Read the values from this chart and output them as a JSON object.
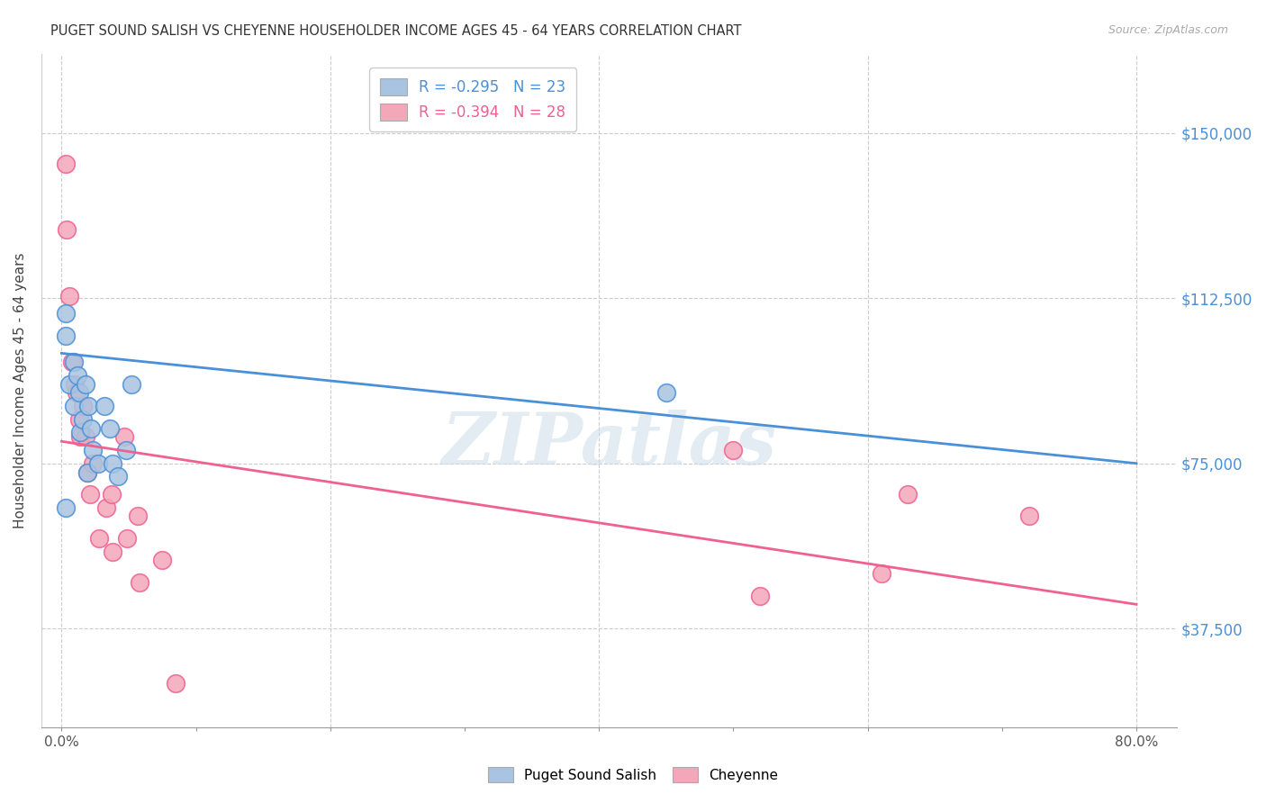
{
  "title": "PUGET SOUND SALISH VS CHEYENNE HOUSEHOLDER INCOME AGES 45 - 64 YEARS CORRELATION CHART",
  "source": "Source: ZipAtlas.com",
  "xlabel_ticks": [
    "0.0%",
    "",
    "",
    "",
    "",
    "",
    "",
    "",
    "80.0%"
  ],
  "xlabel_tick_vals": [
    0,
    0.1,
    0.2,
    0.3,
    0.4,
    0.5,
    0.6,
    0.7,
    0.8
  ],
  "ylabel_ticks": [
    "$37,500",
    "$75,000",
    "$112,500",
    "$150,000"
  ],
  "ylabel_tick_vals": [
    37500,
    75000,
    112500,
    150000
  ],
  "ylabel_label": "Householder Income Ages 45 - 64 years",
  "xlabel_label_bottom": [
    "Puget Sound Salish",
    "Cheyenne"
  ],
  "watermark": "ZIPatlas",
  "legend": [
    {
      "label": "R = -0.295   N = 23",
      "color_text": "#4a90d9"
    },
    {
      "label": "R = -0.394   N = 28",
      "color_text": "#f06090"
    }
  ],
  "blue_scatter_x": [
    0.003,
    0.003,
    0.006,
    0.009,
    0.009,
    0.012,
    0.013,
    0.014,
    0.016,
    0.018,
    0.019,
    0.02,
    0.022,
    0.023,
    0.027,
    0.032,
    0.036,
    0.038,
    0.042,
    0.048,
    0.052,
    0.45,
    0.003
  ],
  "blue_scatter_y": [
    109000,
    104000,
    93000,
    98000,
    88000,
    95000,
    91000,
    82000,
    85000,
    93000,
    73000,
    88000,
    83000,
    78000,
    75000,
    88000,
    83000,
    75000,
    72000,
    78000,
    93000,
    91000,
    65000
  ],
  "pink_scatter_x": [
    0.003,
    0.004,
    0.006,
    0.008,
    0.01,
    0.011,
    0.013,
    0.014,
    0.016,
    0.018,
    0.019,
    0.021,
    0.023,
    0.028,
    0.033,
    0.037,
    0.038,
    0.047,
    0.049,
    0.057,
    0.058,
    0.075,
    0.085,
    0.5,
    0.52,
    0.61,
    0.63,
    0.72
  ],
  "pink_scatter_y": [
    143000,
    128000,
    113000,
    98000,
    93000,
    91000,
    85000,
    81000,
    88000,
    81000,
    73000,
    68000,
    75000,
    58000,
    65000,
    68000,
    55000,
    81000,
    58000,
    63000,
    48000,
    53000,
    25000,
    78000,
    45000,
    50000,
    68000,
    63000
  ],
  "blue_line_x": [
    0.0,
    0.8
  ],
  "blue_line_y": [
    100000,
    75000
  ],
  "pink_line_x": [
    0.0,
    0.8
  ],
  "pink_line_y": [
    80000,
    43000
  ],
  "blue_color": "#4a90d9",
  "pink_color": "#f06090",
  "blue_fill": "#a8c4e0",
  "pink_fill": "#f4a7b9",
  "xlim": [
    -0.015,
    0.83
  ],
  "ylim": [
    15000,
    168000
  ],
  "grid_color": "#cccccc",
  "background_color": "#ffffff",
  "scatter_size": 200
}
